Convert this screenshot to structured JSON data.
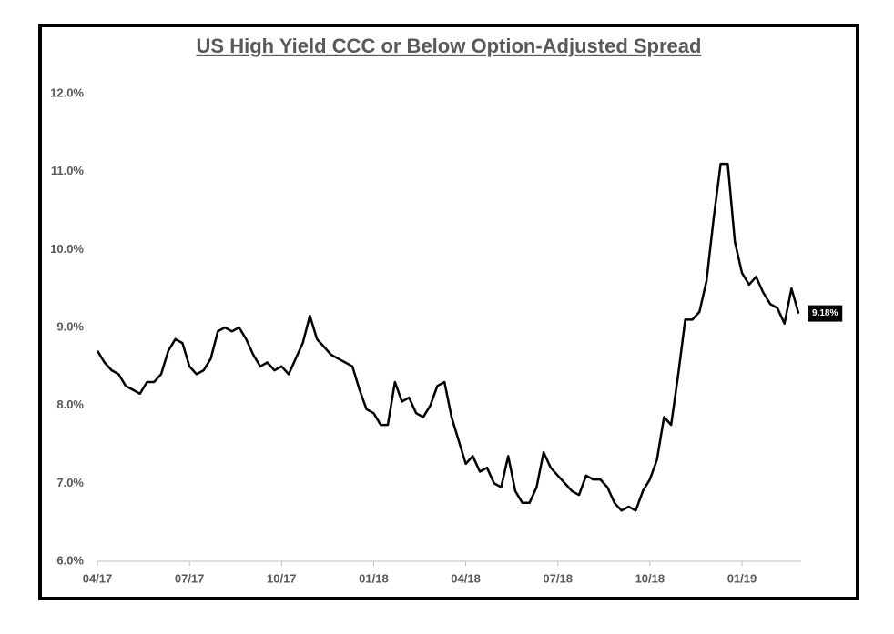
{
  "chart_data": {
    "type": "line",
    "title": "US High Yield CCC or Below Option-Adjusted Spread",
    "categories": [
      "04/17",
      null,
      null,
      null,
      null,
      null,
      null,
      null,
      null,
      null,
      null,
      null,
      null,
      "07/17",
      null,
      null,
      null,
      null,
      null,
      null,
      null,
      null,
      null,
      null,
      null,
      null,
      "10/17",
      null,
      null,
      null,
      null,
      null,
      null,
      null,
      null,
      null,
      null,
      null,
      null,
      "01/18",
      null,
      null,
      null,
      null,
      null,
      null,
      null,
      null,
      null,
      null,
      null,
      null,
      "04/18",
      null,
      null,
      null,
      null,
      null,
      null,
      null,
      null,
      null,
      null,
      null,
      null,
      "07/18",
      null,
      null,
      null,
      null,
      null,
      null,
      null,
      null,
      null,
      null,
      null,
      null,
      "10/18",
      null,
      null,
      null,
      null,
      null,
      null,
      null,
      null,
      null,
      null,
      null,
      null,
      "01/19",
      null,
      null,
      null,
      null,
      null,
      null,
      null,
      null
    ],
    "series": [
      {
        "name": null,
        "color": "#000000",
        "values": [
          8.7,
          8.55,
          8.45,
          8.4,
          8.25,
          8.2,
          8.15,
          8.3,
          8.3,
          8.4,
          8.7,
          8.85,
          8.8,
          8.5,
          8.4,
          8.45,
          8.6,
          8.95,
          9.0,
          8.95,
          9.0,
          8.85,
          8.65,
          8.5,
          8.55,
          8.45,
          8.5,
          8.4,
          8.6,
          8.8,
          9.15,
          8.85,
          8.75,
          8.65,
          8.6,
          8.55,
          8.5,
          8.2,
          7.95,
          7.9,
          7.75,
          7.75,
          8.3,
          8.05,
          8.1,
          7.9,
          7.85,
          8.0,
          8.25,
          8.3,
          7.85,
          7.55,
          7.25,
          7.35,
          7.15,
          7.2,
          7.0,
          6.95,
          7.35,
          6.9,
          6.75,
          6.75,
          6.95,
          7.4,
          7.2,
          7.1,
          7.0,
          6.9,
          6.85,
          7.1,
          7.05,
          7.05,
          6.95,
          6.75,
          6.65,
          6.7,
          6.65,
          6.9,
          7.05,
          7.3,
          7.85,
          7.75,
          8.4,
          9.1,
          9.1,
          9.2,
          9.6,
          10.4,
          11.1,
          11.1,
          10.1,
          9.7,
          9.55,
          9.65,
          9.45,
          9.3,
          9.25,
          9.05,
          9.5,
          9.18
        ],
        "value_labels": [
          null,
          null,
          null,
          null,
          null,
          null,
          null,
          null,
          null,
          null,
          null,
          null,
          null,
          null,
          null,
          null,
          null,
          null,
          null,
          null,
          null,
          null,
          null,
          null,
          null,
          null,
          null,
          null,
          null,
          null,
          null,
          null,
          null,
          null,
          null,
          null,
          null,
          null,
          null,
          null,
          null,
          null,
          null,
          null,
          null,
          null,
          null,
          null,
          null,
          null,
          null,
          null,
          null,
          null,
          null,
          null,
          null,
          null,
          null,
          null,
          null,
          null,
          null,
          null,
          null,
          null,
          null,
          null,
          null,
          null,
          null,
          null,
          null,
          null,
          null,
          null,
          null,
          null,
          null,
          null,
          null,
          null,
          null,
          null,
          null,
          null,
          null,
          null,
          null,
          null,
          null,
          null,
          null,
          null,
          null,
          null,
          null,
          null,
          null,
          "9.18%"
        ]
      }
    ],
    "ylim": [
      6,
      12
    ],
    "yticks": [
      {
        "value": 6,
        "label": "6.0%"
      },
      {
        "value": 7,
        "label": "7.0%"
      },
      {
        "value": 8,
        "label": "8.0%"
      },
      {
        "value": 9,
        "label": "9.0%"
      },
      {
        "value": 10,
        "label": "10.0%"
      },
      {
        "value": 11,
        "label": "11.0%"
      },
      {
        "value": 12,
        "label": "12.0%"
      }
    ],
    "grid": false
  }
}
